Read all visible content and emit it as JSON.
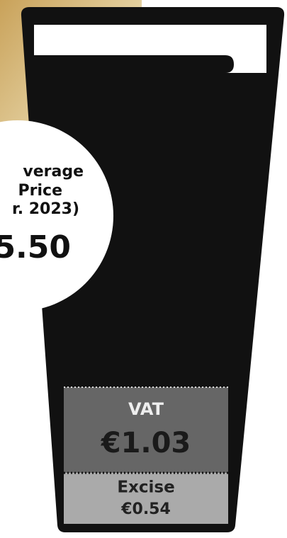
{
  "glass": {
    "badge": {
      "lines": [
        "verage",
        "Price",
        "r. 2023)"
      ],
      "price": "5.50"
    },
    "segments": [
      {
        "label": "VAT",
        "amount": "€1.03"
      },
      {
        "label": "Excise",
        "amount": "€0.54"
      }
    ]
  }
}
